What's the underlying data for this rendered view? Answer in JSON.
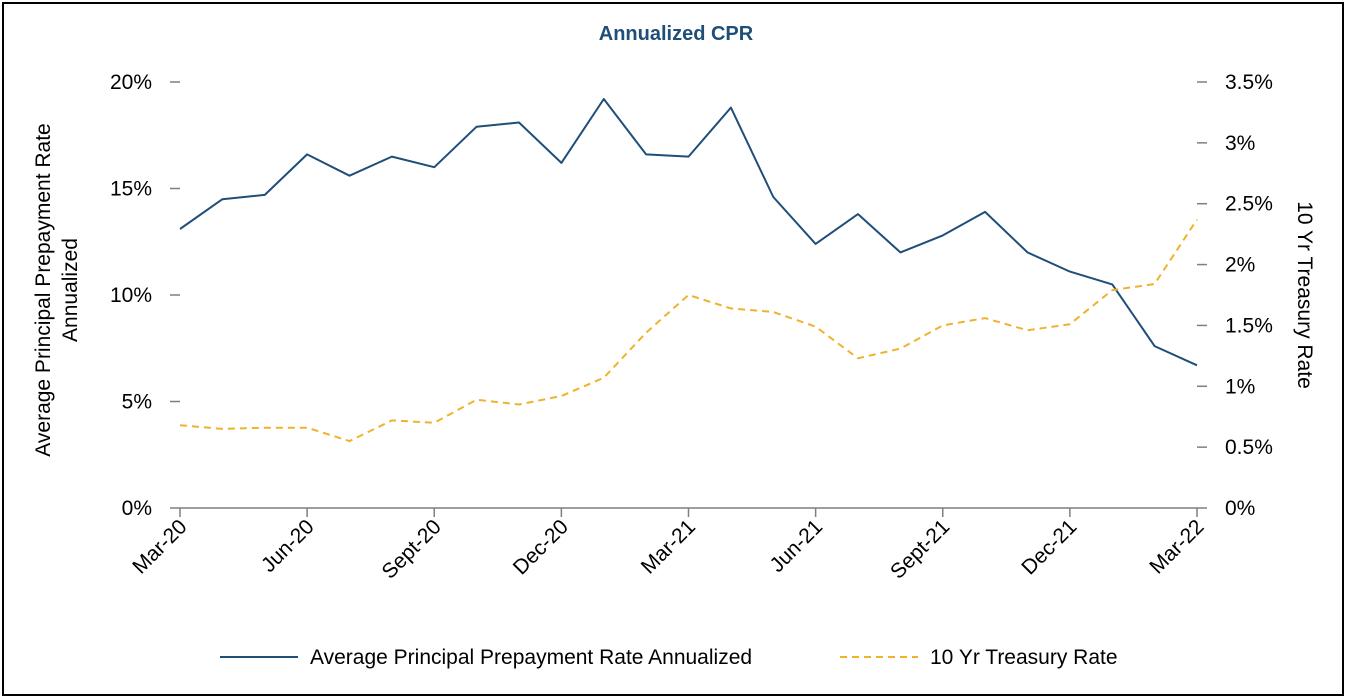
{
  "chart_data": {
    "type": "line",
    "title": "Annualized CPR",
    "x": [
      "Mar-20",
      "Apr-20",
      "May-20",
      "Jun-20",
      "Jul-20",
      "Aug-20",
      "Sept-20",
      "Oct-20",
      "Nov-20",
      "Dec-20",
      "Jan-21",
      "Feb-21",
      "Mar-21",
      "Apr-21",
      "May-21",
      "Jun-21",
      "Jul-21",
      "Aug-21",
      "Sept-21",
      "Oct-21",
      "Nov-21",
      "Dec-21",
      "Jan-22",
      "Feb-22",
      "Mar-22"
    ],
    "xtick_labels": [
      "Mar-20",
      "Jun-20",
      "Sept-20",
      "Dec-20",
      "Mar-21",
      "Jun-21",
      "Sept-21",
      "Dec-21",
      "Mar-22"
    ],
    "xtick_indices": [
      0,
      3,
      6,
      9,
      12,
      15,
      18,
      21,
      24
    ],
    "ylabel_left": "Average Principal Prepayment Rate Annualized",
    "ylabel_right": "10 Yr Treasury Rate",
    "ylim_left": [
      0,
      20
    ],
    "ylim_right": [
      0,
      3.5
    ],
    "yticks_left": [
      "0%",
      "5%",
      "10%",
      "15%",
      "20%"
    ],
    "yticks_left_values": [
      0,
      5,
      10,
      15,
      20
    ],
    "yticks_right": [
      "0%",
      "0.5%",
      "1%",
      "1.5%",
      "2%",
      "2.5%",
      "3%",
      "3.5%"
    ],
    "yticks_right_values": [
      0,
      0.5,
      1,
      1.5,
      2,
      2.5,
      3,
      3.5
    ],
    "grid": false,
    "legend_position": "bottom",
    "series": [
      {
        "name": "Average Principal Prepayment Rate Annualized",
        "axis": "left",
        "style": "solid",
        "color": "#1f4e79",
        "values": [
          13.1,
          14.5,
          14.7,
          16.6,
          15.6,
          16.5,
          16.0,
          17.9,
          18.1,
          16.2,
          19.2,
          16.6,
          16.5,
          18.8,
          14.6,
          12.4,
          13.8,
          12.0,
          12.8,
          13.9,
          12.0,
          11.1,
          10.5,
          7.6,
          6.7
        ]
      },
      {
        "name": "10 Yr Treasury Rate",
        "axis": "right",
        "style": "dashed",
        "color": "#f0b22d",
        "values": [
          0.68,
          0.65,
          0.66,
          0.66,
          0.55,
          0.72,
          0.7,
          0.89,
          0.85,
          0.92,
          1.07,
          1.44,
          1.75,
          1.64,
          1.61,
          1.49,
          1.23,
          1.31,
          1.5,
          1.56,
          1.46,
          1.51,
          1.79,
          1.84,
          2.37
        ]
      }
    ]
  }
}
